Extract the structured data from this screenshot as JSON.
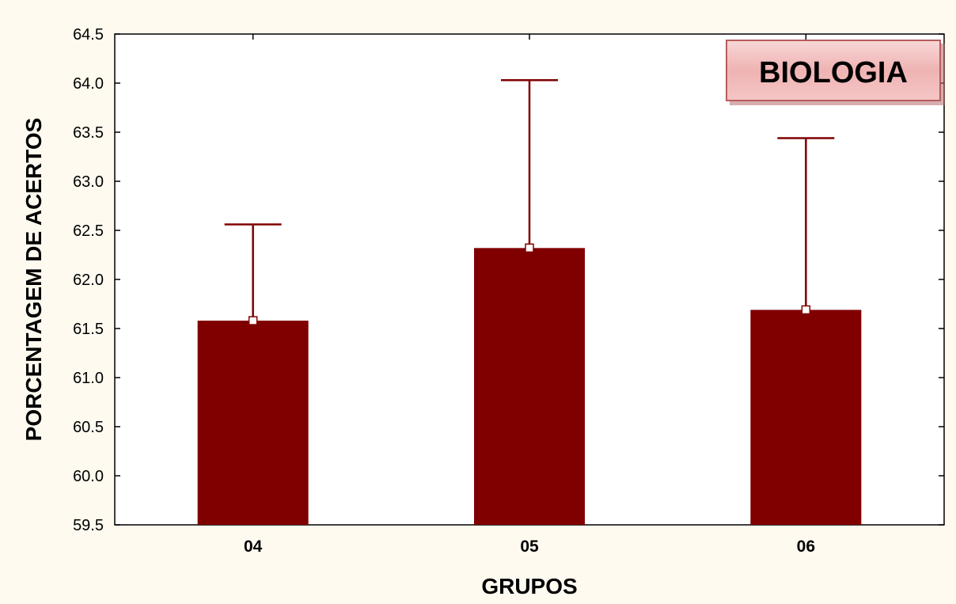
{
  "chart_data": {
    "type": "bar",
    "title": "",
    "xlabel": "GRUPOS",
    "ylabel": "PORCENTAGEM DE ACERTOS",
    "categories": [
      "04",
      "05",
      "06"
    ],
    "values": [
      61.58,
      62.32,
      61.69
    ],
    "error_upper": [
      62.56,
      64.03,
      63.44
    ],
    "ylim": [
      59.5,
      64.5
    ],
    "yticks": [
      "59.5",
      "60.0",
      "60.5",
      "61.0",
      "61.5",
      "62.0",
      "62.5",
      "63.0",
      "63.5",
      "64.0",
      "64.5"
    ],
    "grid": false,
    "badge_label": "BIOLOGIA",
    "colors": {
      "bar": "#800000",
      "whisker": "#800000",
      "background": "#fffaf0",
      "plot_area": "#ffffff",
      "badge_fill": "#f1b8b8",
      "badge_border": "#b85c5c"
    }
  }
}
